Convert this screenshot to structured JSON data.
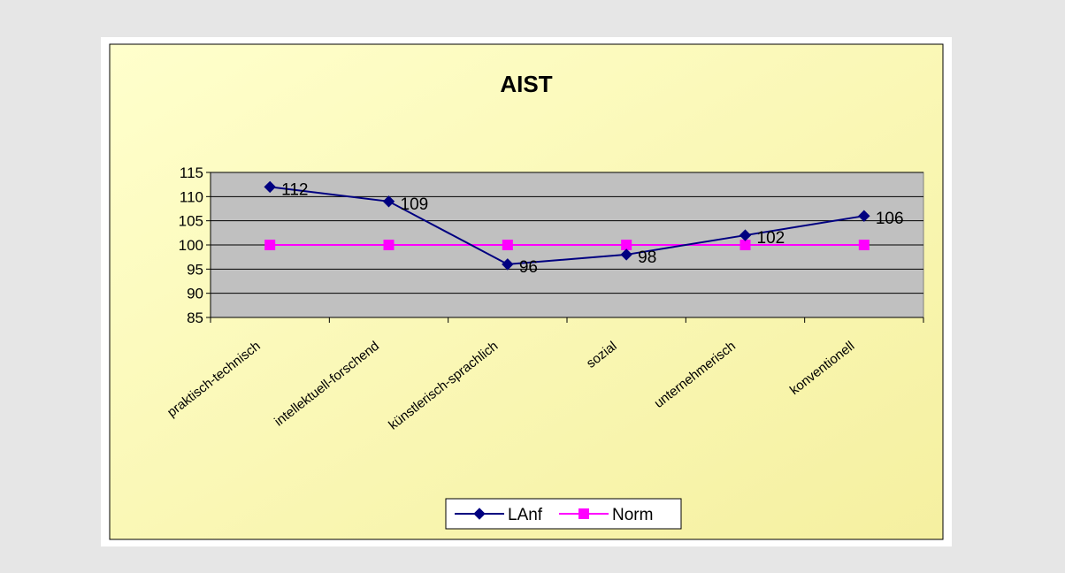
{
  "chart_data": {
    "type": "line",
    "title": "AIST",
    "xlabel": "",
    "ylabel": "",
    "categories": [
      "praktisch-technisch",
      "intellektuell-forschend",
      "künstlerisch-sprachlich",
      "sozial",
      "unternehmerisch",
      "konventionell"
    ],
    "series": [
      {
        "name": "LAnf",
        "values": [
          112,
          109,
          96,
          98,
          102,
          106
        ],
        "color": "#000080",
        "marker": "diamond",
        "data_labels": [
          "112",
          "109",
          "96",
          "98",
          "102",
          "106"
        ]
      },
      {
        "name": "Norm",
        "values": [
          100,
          100,
          100,
          100,
          100,
          100
        ],
        "color": "#ff00ff",
        "marker": "square"
      }
    ],
    "ylim": [
      85,
      115
    ],
    "yticks": [
      "115",
      "110",
      "105",
      "100",
      "95",
      "90",
      "85"
    ],
    "grid": true,
    "legend": "bottom",
    "colors": {
      "chart_area_gradient_start": "#ffffcc",
      "chart_area_gradient_end": "#f5f0a0",
      "plot_area": "#c0c0c0",
      "border": "#000000"
    }
  }
}
